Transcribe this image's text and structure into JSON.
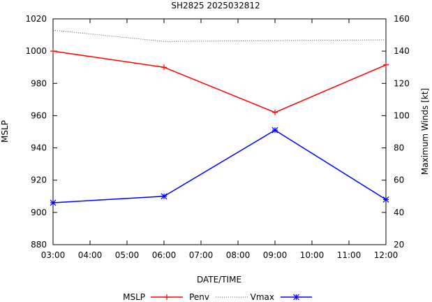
{
  "chart_data": {
    "type": "line",
    "title": "SH2825 2025032812",
    "xlabel": "DATE/TIME",
    "ylabel": "MSLP",
    "y2label": "Maximum Winds [kt]",
    "x_ticks": [
      "03:00",
      "04:00",
      "05:00",
      "06:00",
      "07:00",
      "08:00",
      "09:00",
      "10:00",
      "11:00",
      "12:00"
    ],
    "ylim": [
      880,
      1020
    ],
    "y_ticks": [
      880,
      900,
      920,
      940,
      960,
      980,
      1000,
      1020
    ],
    "y2lim": [
      20,
      160
    ],
    "y2_ticks": [
      20,
      40,
      60,
      80,
      100,
      120,
      140,
      160
    ],
    "grid": false,
    "legend_position": "bottom",
    "series": [
      {
        "name": "MSLP",
        "axis": "left",
        "color": "#ff0000",
        "style": "solid",
        "marker": "plus",
        "x": [
          "03:00",
          "06:00",
          "09:00",
          "12:00"
        ],
        "values": [
          1000,
          990,
          962,
          991.5
        ]
      },
      {
        "name": "Penv",
        "axis": "left",
        "color": "#555555",
        "style": "dotted",
        "marker": "none",
        "x": [
          "03:00",
          "06:00",
          "09:00",
          "12:00"
        ],
        "values": [
          1013,
          1006,
          1006.5,
          1007
        ]
      },
      {
        "name": "Vmax",
        "axis": "right",
        "color": "#0000ff",
        "style": "solid",
        "marker": "star",
        "x": [
          "03:00",
          "06:00",
          "09:00",
          "12:00"
        ],
        "values": [
          46,
          50,
          91,
          48
        ]
      }
    ]
  }
}
